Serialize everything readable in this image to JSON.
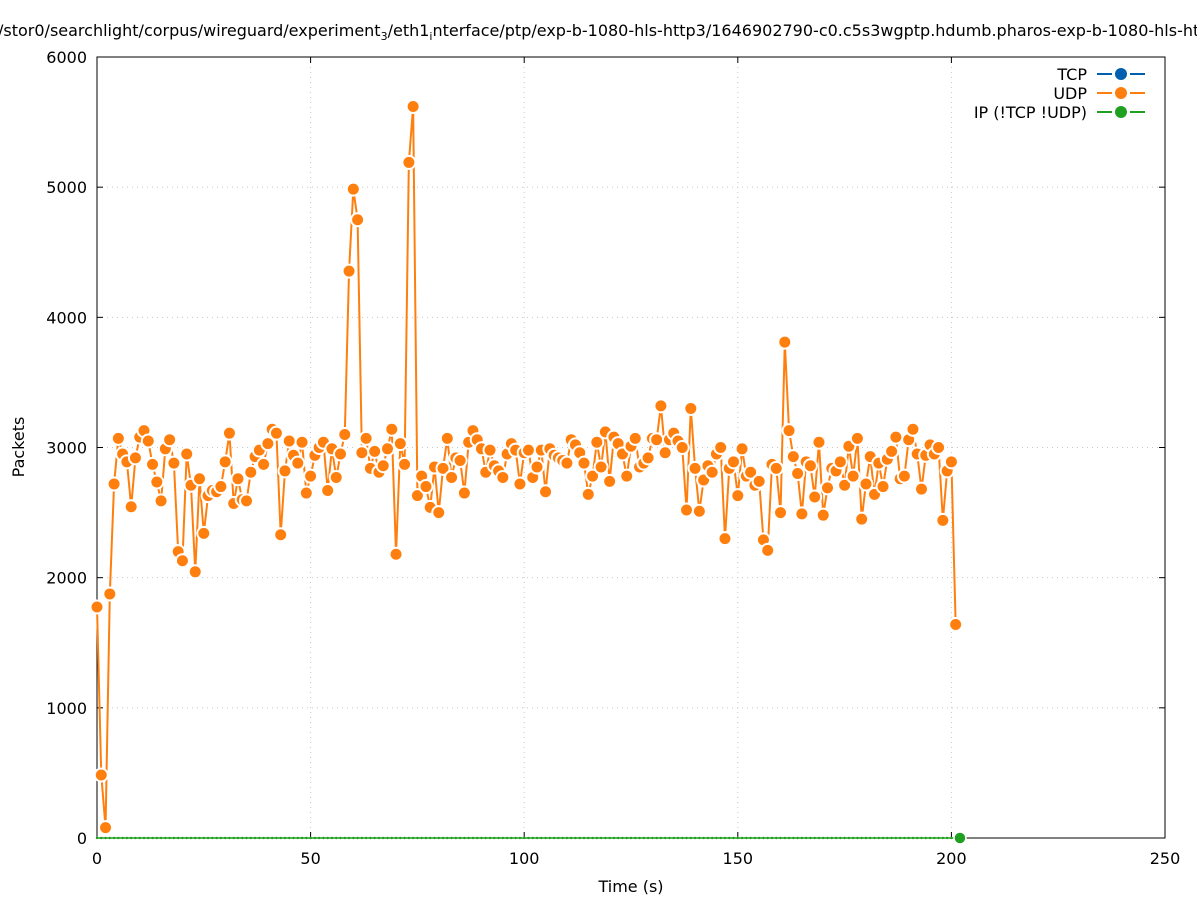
{
  "chart_data": {
    "type": "line",
    "title_parts": [
      {
        "text": "/stor0/searchlight/corpus/wireguard/experiment",
        "sub": false
      },
      {
        "text": "3",
        "sub": true
      },
      {
        "text": "/eth1",
        "sub": false
      },
      {
        "text": "i",
        "sub": true
      },
      {
        "text": "nterface/ptp/exp-b-1080-hls-http3/1646902790-c0.c5s3wgptp.hdumb.pharos-exp-b-1080-hls-ht",
        "sub": false
      }
    ],
    "xlabel": "Time (s)",
    "ylabel": "Packets",
    "xlim": [
      0,
      250
    ],
    "ylim": [
      0,
      6000
    ],
    "xticks": [
      "0",
      "50",
      "100",
      "150",
      "200",
      "250"
    ],
    "yticks": [
      "0",
      "1000",
      "2000",
      "3000",
      "4000",
      "5000",
      "6000"
    ],
    "grid": true,
    "legend_position": "top-right",
    "series": [
      {
        "name": "TCP",
        "color": "#0060ad",
        "x": [],
        "values": []
      },
      {
        "name": "UDP",
        "color": "#ff7f0e",
        "x_start": 0,
        "x_step": 1,
        "values": [
          1775,
          484,
          80,
          1875,
          2720,
          3070,
          2950,
          2890,
          2545,
          2920,
          3080,
          3130,
          3050,
          2870,
          2735,
          2590,
          2990,
          3060,
          2880,
          2200,
          2130,
          2950,
          2710,
          2045,
          2760,
          2340,
          2630,
          2670,
          2660,
          2700,
          2890,
          3110,
          2570,
          2760,
          2600,
          2590,
          2810,
          2930,
          2980,
          2870,
          3030,
          3140,
          3110,
          2330,
          2820,
          3050,
          2940,
          2880,
          3040,
          2650,
          2780,
          2940,
          3000,
          3040,
          2670,
          2990,
          2770,
          2950,
          3100,
          4355,
          4985,
          4750,
          2960,
          3070,
          2840,
          2970,
          2810,
          2860,
          2990,
          3140,
          2180,
          3030,
          2870,
          5190,
          5620,
          2630,
          2780,
          2700,
          2540,
          2850,
          2500,
          2840,
          3070,
          2770,
          2920,
          2900,
          2650,
          3040,
          3130,
          3060,
          2990,
          2810,
          2980,
          2860,
          2820,
          2770,
          2950,
          3030,
          2980,
          2720,
          2960,
          2980,
          2770,
          2850,
          2980,
          2660,
          2990,
          2940,
          2920,
          2900,
          2880,
          3060,
          3020,
          2960,
          2880,
          2640,
          2780,
          3040,
          2850,
          3120,
          2740,
          3080,
          3030,
          2950,
          2780,
          3010,
          3070,
          2850,
          2880,
          2920,
          3070,
          3060,
          3320,
          2960,
          3060,
          3110,
          3050,
          3000,
          2520,
          3300,
          2840,
          2510,
          2750,
          2860,
          2810,
          2950,
          3000,
          2300,
          2840,
          2890,
          2630,
          2990,
          2780,
          2810,
          2710,
          2740,
          2290,
          2210,
          2870,
          2840,
          2500,
          3810,
          3130,
          2930,
          2800,
          2490,
          2890,
          2860,
          2620,
          3040,
          2480,
          2690,
          2840,
          2820,
          2890,
          2710,
          3010,
          2780,
          3070,
          2450,
          2720,
          2930,
          2640,
          2880,
          2700,
          2910,
          2970,
          3080,
          2760,
          2780,
          3060,
          3140,
          2950,
          2680,
          2940,
          3020,
          2950,
          3000,
          2440,
          2820,
          2890,
          1640
        ]
      },
      {
        "name": "IP (!TCP  !UDP)",
        "color": "#20a020",
        "x_start": 0,
        "x_step": 1,
        "count": 203,
        "constant_value": 0
      }
    ]
  }
}
